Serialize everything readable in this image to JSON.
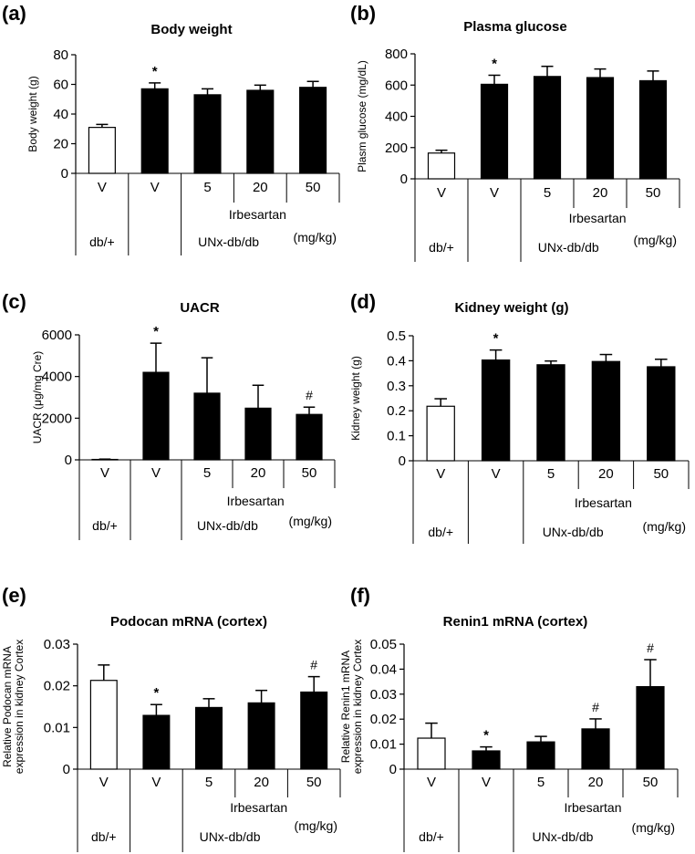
{
  "figure": {
    "group_labels": {
      "control": "db/+",
      "model": "UNx-db/db",
      "drug": "Irbesartan",
      "unit": "(mg/kg)"
    }
  },
  "chart_data": [
    {
      "type": "bar",
      "letter": "(a)",
      "title": "Body weight",
      "ylabel": "Body weight (g)",
      "categories": [
        "V",
        "V",
        "5",
        "20",
        "50"
      ],
      "values": [
        31,
        57,
        53,
        56,
        58
      ],
      "errors": [
        2,
        4,
        4,
        3.5,
        4
      ],
      "fills": [
        "#ffffff",
        "#000000",
        "#000000",
        "#000000",
        "#000000"
      ],
      "marks": [
        "",
        "*",
        "",
        "",
        ""
      ],
      "ylim": [
        0,
        80
      ],
      "yticks": [
        "0",
        "20",
        "40",
        "60",
        "80"
      ]
    },
    {
      "type": "bar",
      "letter": "(b)",
      "title": "Plasma glucose",
      "ylabel": "Plasm glucose (mg/dL)",
      "categories": [
        "V",
        "V",
        "5",
        "20",
        "50"
      ],
      "values": [
        165,
        605,
        655,
        648,
        628
      ],
      "errors": [
        18,
        58,
        65,
        55,
        62
      ],
      "fills": [
        "#ffffff",
        "#000000",
        "#000000",
        "#000000",
        "#000000"
      ],
      "marks": [
        "",
        "*",
        "",
        "",
        ""
      ],
      "ylim": [
        0,
        800
      ],
      "yticks": [
        "0",
        "200",
        "400",
        "600",
        "800"
      ]
    },
    {
      "type": "bar",
      "letter": "(c)",
      "title": "UACR",
      "ylabel": "UACR (μg/mg Cre)",
      "categories": [
        "V",
        "V",
        "5",
        "20",
        "50"
      ],
      "values": [
        20,
        4200,
        3200,
        2480,
        2180
      ],
      "errors": [
        15,
        1400,
        1700,
        1100,
        350
      ],
      "fills": [
        "#ffffff",
        "#000000",
        "#000000",
        "#000000",
        "#000000"
      ],
      "marks": [
        "",
        "*",
        "",
        "",
        "#"
      ],
      "ylim": [
        0,
        6000
      ],
      "yticks": [
        "0",
        "2000",
        "4000",
        "6000"
      ]
    },
    {
      "type": "bar",
      "letter": "(d)",
      "title": "Kidney weight (g)",
      "ylabel": "Kidney weight (g)",
      "categories": [
        "V",
        "V",
        "5",
        "20",
        "50"
      ],
      "values": [
        0.218,
        0.403,
        0.384,
        0.397,
        0.376
      ],
      "errors": [
        0.03,
        0.04,
        0.015,
        0.028,
        0.03
      ],
      "fills": [
        "#ffffff",
        "#000000",
        "#000000",
        "#000000",
        "#000000"
      ],
      "marks": [
        "",
        "*",
        "",
        "",
        ""
      ],
      "ylim": [
        0,
        0.5
      ],
      "yticks": [
        "0",
        "0.1",
        "0.2",
        "0.3",
        "0.4",
        "0.5"
      ]
    },
    {
      "type": "bar",
      "letter": "(e)",
      "title": "Podocan mRNA (cortex)",
      "ylabel_lines": [
        "Relative Podocan mRNA",
        "expression in kidney Cortex"
      ],
      "categories": [
        "V",
        "V",
        "5",
        "20",
        "50"
      ],
      "values": [
        0.0213,
        0.0129,
        0.0148,
        0.0159,
        0.0185
      ],
      "errors": [
        0.0037,
        0.0026,
        0.0021,
        0.003,
        0.0037
      ],
      "fills": [
        "#ffffff",
        "#000000",
        "#000000",
        "#000000",
        "#000000"
      ],
      "marks": [
        "",
        "*",
        "",
        "",
        "#"
      ],
      "ylim": [
        0,
        0.03
      ],
      "yticks": [
        "0",
        "0.01",
        "0.02",
        "0.03"
      ]
    },
    {
      "type": "bar",
      "letter": "(f)",
      "title": "Renin1 mRNA (cortex)",
      "ylabel_lines": [
        "Relative Renin1 mRNA",
        "expression in kidney Cortex"
      ],
      "categories": [
        "V",
        "V",
        "5",
        "20",
        "50"
      ],
      "values": [
        0.0124,
        0.0073,
        0.0109,
        0.0161,
        0.033
      ],
      "errors": [
        0.006,
        0.0016,
        0.0022,
        0.004,
        0.0108
      ],
      "fills": [
        "#ffffff",
        "#000000",
        "#000000",
        "#000000",
        "#000000"
      ],
      "marks": [
        "",
        "*",
        "",
        "#",
        "#"
      ],
      "ylim": [
        0,
        0.05
      ],
      "yticks": [
        "0",
        "0.01",
        "0.02",
        "0.03",
        "0.04",
        "0.05"
      ]
    }
  ]
}
